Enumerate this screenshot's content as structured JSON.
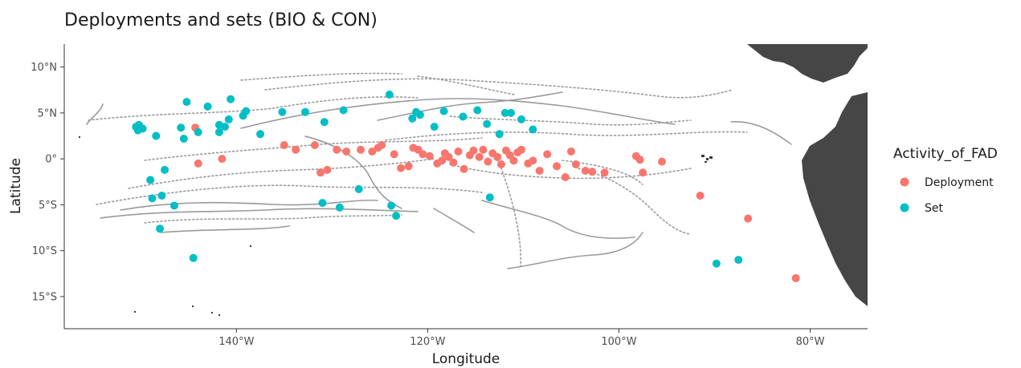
{
  "chart_data": {
    "type": "scatter",
    "title": "Deployments and sets (BIO & CON)",
    "xlabel": "Longitude",
    "ylabel": "Latitude",
    "xlim": [
      -158,
      -74
    ],
    "ylim": [
      -18.5,
      12.5
    ],
    "x_ticks": [
      {
        "value": -140,
        "label": "140°W"
      },
      {
        "value": -120,
        "label": "120°W"
      },
      {
        "value": -100,
        "label": "100°W"
      },
      {
        "value": -80,
        "label": "80°W"
      }
    ],
    "y_ticks": [
      {
        "value": 10,
        "label": "10°N"
      },
      {
        "value": 5,
        "label": "5°N"
      },
      {
        "value": 0,
        "label": "0°"
      },
      {
        "value": -5,
        "label": "5°S"
      },
      {
        "value": -10,
        "label": "10°S"
      },
      {
        "value": -15,
        "label": "15°S"
      }
    ],
    "grid": false,
    "legend": {
      "title": "Activity_of_FAD",
      "position": "right",
      "entries": [
        "Deployment",
        "Set"
      ]
    },
    "series": [
      {
        "name": "Deployment",
        "color": "#F8766D",
        "points": [
          [
            -144.3,
            3.4
          ],
          [
            -144,
            -0.5
          ],
          [
            -141.5,
            0
          ],
          [
            -135,
            1.5
          ],
          [
            -133.8,
            1
          ],
          [
            -131.8,
            1.5
          ],
          [
            -131.2,
            -1.5
          ],
          [
            -130.5,
            -1.2
          ],
          [
            -129.5,
            1
          ],
          [
            -128.5,
            0.8
          ],
          [
            -127,
            1
          ],
          [
            -125.8,
            0.8
          ],
          [
            -125.2,
            1.2
          ],
          [
            -124.8,
            1.5
          ],
          [
            -123.5,
            0.5
          ],
          [
            -122.8,
            -1
          ],
          [
            -122,
            -0.8
          ],
          [
            -121.5,
            1.2
          ],
          [
            -121,
            1
          ],
          [
            -120.5,
            0.5
          ],
          [
            -119.8,
            0.3
          ],
          [
            -119,
            -0.5
          ],
          [
            -118.5,
            -0.2
          ],
          [
            -118.2,
            0.6
          ],
          [
            -117.8,
            0.2
          ],
          [
            -117.3,
            -0.4
          ],
          [
            -116.8,
            0.8
          ],
          [
            -116.2,
            -1.1
          ],
          [
            -115.6,
            0.4
          ],
          [
            -115.2,
            0.9
          ],
          [
            -114.6,
            0.2
          ],
          [
            -114.2,
            1
          ],
          [
            -113.7,
            -0.3
          ],
          [
            -113.2,
            0.6
          ],
          [
            -112.7,
            0.2
          ],
          [
            -112.3,
            -0.6
          ],
          [
            -111.8,
            0.9
          ],
          [
            -111.4,
            0.4
          ],
          [
            -111,
            -0.2
          ],
          [
            -110.6,
            0.7
          ],
          [
            -110.2,
            1
          ],
          [
            -109.5,
            -0.5
          ],
          [
            -109,
            -0.2
          ],
          [
            -108.3,
            -1.3
          ],
          [
            -107.5,
            0.5
          ],
          [
            -106.5,
            -0.8
          ],
          [
            -105.6,
            -2
          ],
          [
            -105,
            0.8
          ],
          [
            -104.5,
            -0.6
          ],
          [
            -103.5,
            -1.3
          ],
          [
            -102.8,
            -1.4
          ],
          [
            -101.5,
            -1.5
          ],
          [
            -98.2,
            0.3
          ],
          [
            -97.8,
            -0.1
          ],
          [
            -97.5,
            -1.5
          ],
          [
            -95.5,
            -0.3
          ],
          [
            -91.5,
            -4
          ],
          [
            -86.5,
            -6.5
          ],
          [
            -81.5,
            -13
          ]
        ]
      },
      {
        "name": "Set",
        "color": "#00BFC4",
        "points": [
          [
            -150.5,
            3.5
          ],
          [
            -150.3,
            3.1
          ],
          [
            -150.2,
            3.7
          ],
          [
            -149.8,
            3.3
          ],
          [
            -148.4,
            2.5
          ],
          [
            -147.5,
            -1.2
          ],
          [
            -149,
            -2.3
          ],
          [
            -148.8,
            -4.3
          ],
          [
            -147.8,
            -4
          ],
          [
            -148,
            -7.6
          ],
          [
            -146.5,
            -5.1
          ],
          [
            -145.8,
            3.4
          ],
          [
            -145.2,
            6.2
          ],
          [
            -145.5,
            2.2
          ],
          [
            -144,
            2.9
          ],
          [
            -143,
            5.7
          ],
          [
            -141.8,
            3.7
          ],
          [
            -141.8,
            2.9
          ],
          [
            -141.2,
            3.5
          ],
          [
            -140.6,
            6.5
          ],
          [
            -140.8,
            4.3
          ],
          [
            -139.3,
            4.7
          ],
          [
            -139,
            5.2
          ],
          [
            -137.5,
            2.7
          ],
          [
            -135.2,
            5.1
          ],
          [
            -132.8,
            5.1
          ],
          [
            -130.8,
            4
          ],
          [
            -131,
            -4.8
          ],
          [
            -129.2,
            -5.3
          ],
          [
            -128.8,
            5.3
          ],
          [
            -127.2,
            -3.3
          ],
          [
            -124,
            7
          ],
          [
            -123.8,
            -5.1
          ],
          [
            -123.3,
            -6.2
          ],
          [
            -121.6,
            4.4
          ],
          [
            -121.2,
            5.1
          ],
          [
            -120.8,
            4.8
          ],
          [
            -119.3,
            3.5
          ],
          [
            -118.3,
            5.2
          ],
          [
            -116.3,
            4.6
          ],
          [
            -114.8,
            5.3
          ],
          [
            -113.8,
            3.8
          ],
          [
            -113.5,
            -4.2
          ],
          [
            -112.5,
            2.7
          ],
          [
            -111.9,
            5
          ],
          [
            -111.3,
            5
          ],
          [
            -110.2,
            4.3
          ],
          [
            -109,
            3.2
          ],
          [
            -144.5,
            -10.8
          ],
          [
            -89.8,
            -11.4
          ],
          [
            -87.5,
            -11
          ]
        ]
      }
    ]
  }
}
